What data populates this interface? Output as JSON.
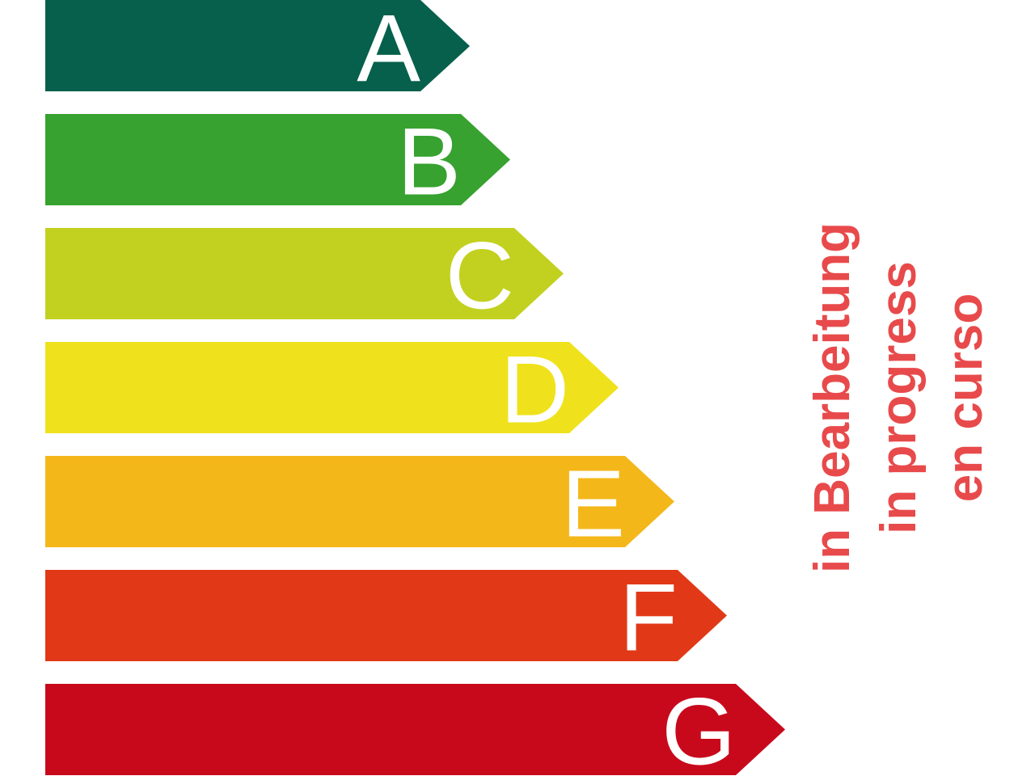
{
  "energy_label": {
    "classes": [
      {
        "letter": "A",
        "color": "#06604b"
      },
      {
        "letter": "B",
        "color": "#37a22f"
      },
      {
        "letter": "C",
        "color": "#c2d11f"
      },
      {
        "letter": "D",
        "color": "#efe21c"
      },
      {
        "letter": "E",
        "color": "#f4b71a"
      },
      {
        "letter": "F",
        "color": "#e13918"
      },
      {
        "letter": "G",
        "color": "#c8091c"
      }
    ]
  },
  "status": {
    "color": "#e84a4b",
    "lines": [
      "in Bearbeitung",
      "in progress",
      "en curso"
    ]
  }
}
